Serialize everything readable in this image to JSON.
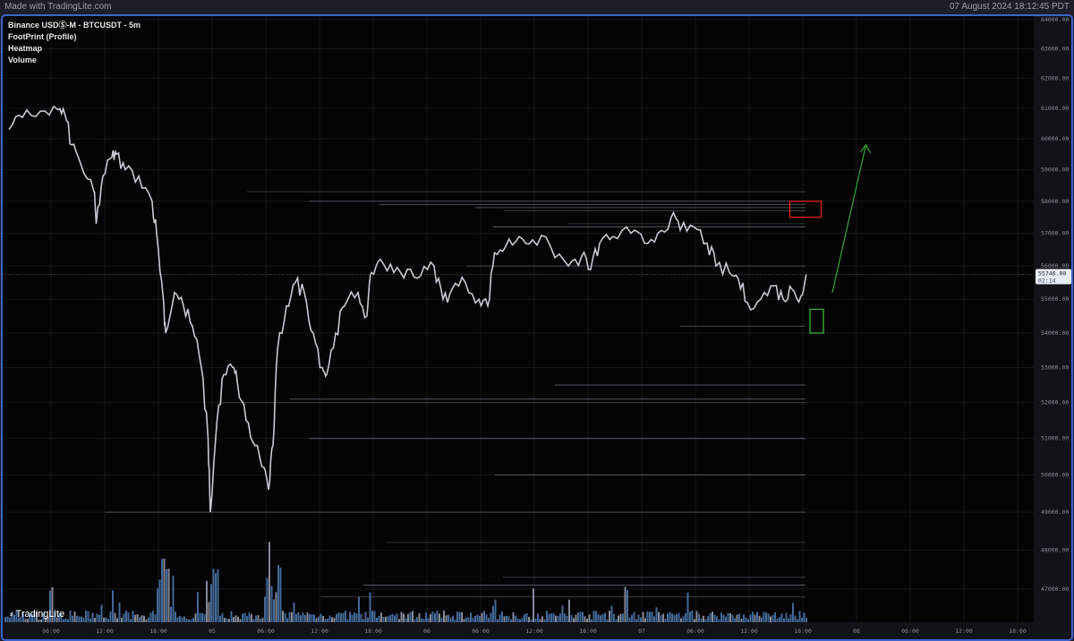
{
  "header": {
    "brand": "Made with TradingLite.com",
    "timestamp": "07 August 2024 18:12:45 PDT"
  },
  "legend": {
    "symbol": "Binance USDⓈ-M - BTCUSDT - 5m",
    "layers": [
      "FootPrint (Profile)",
      "Heatmap",
      "Volume"
    ]
  },
  "logo": "TradingLite",
  "price_tag": {
    "price": "55746.00",
    "countdown": "02:14"
  },
  "colors": {
    "candles": "#c9c9d4",
    "volume": "#4f79b0",
    "red_box": "#e02020",
    "green_box": "#3cb43c",
    "arrow": "#3cb43c",
    "frame": "#3f63c9"
  },
  "chart_data": {
    "type": "line",
    "scale": "log",
    "ylim": [
      46500,
      64200
    ],
    "yticks": [
      "64000.00",
      "63000.00",
      "62000.00",
      "61000.00",
      "60000.00",
      "59000.00",
      "58000.00",
      "57000.00",
      "56000.00",
      "55000.00",
      "54000.00",
      "53000.00",
      "52000.00",
      "51000.00",
      "50000.00",
      "49000.00",
      "48000.00",
      "47000.00"
    ],
    "xlim": [
      "2024-08-04T00:24",
      "2024-08-08T23:30"
    ],
    "xticks": [
      "06:00",
      "12:00",
      "18:00",
      "05",
      "06:00",
      "12:00",
      "18:00",
      "06",
      "06:00",
      "12:00",
      "18:00",
      "07",
      "06:00",
      "12:00",
      "18:00",
      "08",
      "06:00",
      "12:00",
      "18:00"
    ],
    "grid": true,
    "series": [
      {
        "points": [
          [
            "2024-08-04T01:00",
            60300
          ],
          [
            "2024-08-04T02:30",
            60700
          ],
          [
            "2024-08-04T04:30",
            60900
          ],
          [
            "2024-08-04T06:30",
            60950
          ],
          [
            "2024-08-04T07:15",
            60800
          ],
          [
            "2024-08-04T08:00",
            59800
          ],
          [
            "2024-08-04T09:00",
            59200
          ],
          [
            "2024-08-04T10:30",
            58300
          ],
          [
            "2024-08-04T10:45",
            57300
          ],
          [
            "2024-08-04T11:30",
            58800
          ],
          [
            "2024-08-04T12:30",
            59400
          ],
          [
            "2024-08-04T13:00",
            59500
          ],
          [
            "2024-08-04T14:00",
            59000
          ],
          [
            "2024-08-04T15:30",
            58800
          ],
          [
            "2024-08-04T17:00",
            58000
          ],
          [
            "2024-08-04T17:30",
            57000
          ],
          [
            "2024-08-04T18:15",
            55000
          ],
          [
            "2024-08-04T18:30",
            54000
          ],
          [
            "2024-08-04T19:30",
            55200
          ],
          [
            "2024-08-04T20:30",
            54800
          ],
          [
            "2024-08-04T21:30",
            54200
          ],
          [
            "2024-08-04T22:30",
            53000
          ],
          [
            "2024-08-04T23:15",
            51000
          ],
          [
            "2024-08-04T23:30",
            49000
          ],
          [
            "2024-08-05T00:15",
            51500
          ],
          [
            "2024-08-05T01:00",
            52800
          ],
          [
            "2024-08-05T02:00",
            53000
          ],
          [
            "2024-08-05T02:30",
            52600
          ],
          [
            "2024-08-05T03:30",
            51500
          ],
          [
            "2024-08-05T04:30",
            50800
          ],
          [
            "2024-08-05T05:30",
            50200
          ],
          [
            "2024-08-05T06:00",
            49600
          ],
          [
            "2024-08-05T06:30",
            50800
          ],
          [
            "2024-08-05T07:00",
            53500
          ],
          [
            "2024-08-05T08:00",
            54800
          ],
          [
            "2024-08-05T09:00",
            55500
          ],
          [
            "2024-08-05T10:00",
            55200
          ],
          [
            "2024-08-05T11:00",
            54000
          ],
          [
            "2024-08-05T12:00",
            53000
          ],
          [
            "2024-08-05T12:30",
            52800
          ],
          [
            "2024-08-05T13:30",
            54000
          ],
          [
            "2024-08-05T14:30",
            54800
          ],
          [
            "2024-08-05T16:00",
            55200
          ],
          [
            "2024-08-05T17:00",
            54500
          ],
          [
            "2024-08-05T17:30",
            55800
          ],
          [
            "2024-08-05T18:30",
            56200
          ],
          [
            "2024-08-05T20:00",
            55800
          ],
          [
            "2024-08-05T21:30",
            55900
          ],
          [
            "2024-08-05T23:00",
            55700
          ],
          [
            "2024-08-06T00:30",
            56000
          ],
          [
            "2024-08-06T01:30",
            55000
          ],
          [
            "2024-08-06T02:30",
            55300
          ],
          [
            "2024-08-06T04:00",
            55500
          ],
          [
            "2024-08-06T05:30",
            55000
          ],
          [
            "2024-08-06T06:30",
            54800
          ],
          [
            "2024-08-06T07:15",
            56400
          ],
          [
            "2024-08-06T08:30",
            56600
          ],
          [
            "2024-08-06T10:00",
            56900
          ],
          [
            "2024-08-06T11:30",
            56800
          ],
          [
            "2024-08-06T13:30",
            56600
          ],
          [
            "2024-08-06T15:30",
            56000
          ],
          [
            "2024-08-06T17:00",
            56300
          ],
          [
            "2024-08-06T18:00",
            55900
          ],
          [
            "2024-08-06T19:00",
            56700
          ],
          [
            "2024-08-06T20:30",
            56900
          ],
          [
            "2024-08-06T22:30",
            57000
          ],
          [
            "2024-08-07T00:00",
            56700
          ],
          [
            "2024-08-07T01:30",
            57000
          ],
          [
            "2024-08-07T03:00",
            57500
          ],
          [
            "2024-08-07T04:00",
            57100
          ],
          [
            "2024-08-07T05:30",
            57200
          ],
          [
            "2024-08-07T07:00",
            56700
          ],
          [
            "2024-08-07T08:00",
            56000
          ],
          [
            "2024-08-07T09:30",
            55800
          ],
          [
            "2024-08-07T10:30",
            55600
          ],
          [
            "2024-08-07T11:30",
            54900
          ],
          [
            "2024-08-07T13:00",
            55000
          ],
          [
            "2024-08-07T14:30",
            55400
          ],
          [
            "2024-08-07T15:30",
            55000
          ],
          [
            "2024-08-07T16:30",
            55300
          ],
          [
            "2024-08-07T17:30",
            55100
          ],
          [
            "2024-08-07T18:05",
            55746
          ]
        ]
      }
    ],
    "heatmap_levels": [
      58300,
      58000,
      57900,
      57800,
      57700,
      57300,
      57200,
      56000,
      54200,
      52500,
      52100,
      52000,
      51000,
      50000,
      49000,
      48200,
      47300,
      47100,
      46800
    ],
    "annotations": [
      {
        "type": "rectangle",
        "color": "red",
        "price_range": [
          57500,
          58000
        ],
        "time_range": [
          "2024-08-07T16:15",
          "2024-08-07T19:45"
        ]
      },
      {
        "type": "rectangle",
        "color": "green",
        "price_range": [
          54000,
          54700
        ],
        "time_range": [
          "2024-08-07T18:30",
          "2024-08-07T20:00"
        ]
      },
      {
        "type": "arrow",
        "color": "green",
        "from": [
          "2024-08-07T21:00",
          55200
        ],
        "to": [
          "2024-08-08T00:45",
          59800
        ]
      }
    ]
  }
}
